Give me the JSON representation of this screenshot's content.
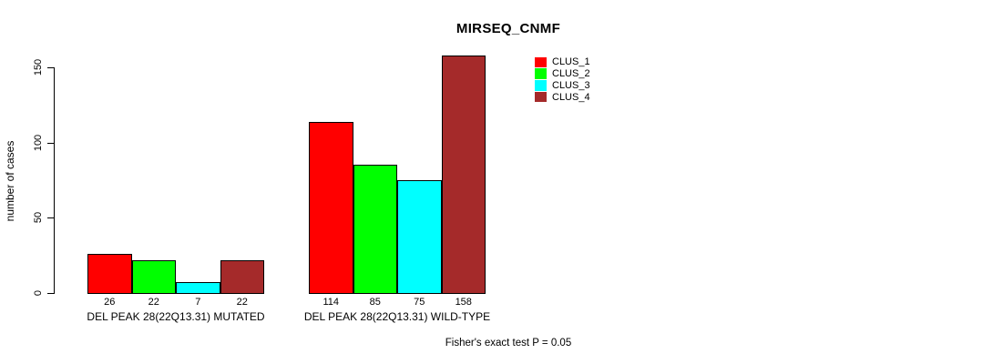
{
  "window": {
    "background": "#ffffff"
  },
  "chart_data": {
    "type": "bar",
    "title": "MIRSEQ_CNMF",
    "ylabel": "number of cases",
    "ylim": [
      0,
      150
    ],
    "yticks": [
      0,
      50,
      100,
      150
    ],
    "grid": false,
    "legend_position": "top-right",
    "categories": [
      "DEL PEAK 28(22Q13.31) MUTATED",
      "DEL PEAK 28(22Q13.31) WILD-TYPE"
    ],
    "series": [
      {
        "name": "CLUS_1",
        "color": "#FF0000",
        "values": [
          26,
          114
        ]
      },
      {
        "name": "CLUS_2",
        "color": "#00FF00",
        "values": [
          22,
          85
        ]
      },
      {
        "name": "CLUS_3",
        "color": "#00FFFF",
        "values": [
          7,
          75
        ]
      },
      {
        "name": "CLUS_4",
        "color": "#A52A2A",
        "values": [
          22,
          158
        ]
      }
    ],
    "bar_value_labels_shown": true,
    "annotation": "Fisher's exact test P = 0.05"
  }
}
